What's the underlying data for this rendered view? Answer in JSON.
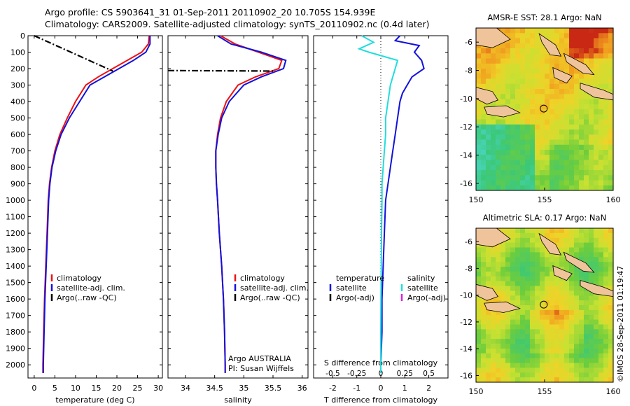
{
  "header": {
    "line1": "Argo profile: CS 5903641_31 01-Sep-2011 20110902_20 10.705S 154.939E",
    "line2": "Climatology: CARS2009. Satellite-adjusted climatology: synTS_20110902.nc (0.4d later)"
  },
  "credit": "©IMOS 28-Sep-2011 01:19:47",
  "colors": {
    "climatology": "#ee1111",
    "satellite_adj": "#1111dd",
    "argo": "#000000",
    "salinity_satellite": "#22dddd",
    "salinity_argo": "#dd22dd"
  },
  "chart_data": [
    {
      "type": "line",
      "id": "temperature",
      "xlabel": "temperature (deg C)",
      "ylabel": "",
      "xlim": [
        -1.5,
        31
      ],
      "ylim": [
        2080,
        0
      ],
      "xticks": [
        0,
        5,
        10,
        15,
        20,
        25,
        30
      ],
      "yticks": [
        0,
        100,
        200,
        300,
        400,
        500,
        600,
        700,
        800,
        900,
        1000,
        1100,
        1200,
        1300,
        1400,
        1500,
        1600,
        1700,
        1800,
        1900,
        2000
      ],
      "series": [
        {
          "name": "climatology",
          "color": "#ee1111",
          "points": [
            [
              27.8,
              0
            ],
            [
              27.6,
              50
            ],
            [
              26,
              100
            ],
            [
              22.5,
              150
            ],
            [
              19,
              200
            ],
            [
              15.5,
              250
            ],
            [
              12.5,
              300
            ],
            [
              10,
              400
            ],
            [
              8,
              500
            ],
            [
              6.2,
              600
            ],
            [
              5,
              700
            ],
            [
              4.2,
              800
            ],
            [
              3.7,
              900
            ],
            [
              3.4,
              1000
            ],
            [
              3.1,
              1200
            ],
            [
              2.8,
              1400
            ],
            [
              2.5,
              1600
            ],
            [
              2.3,
              1800
            ],
            [
              2.1,
              2000
            ],
            [
              2.1,
              2050
            ]
          ]
        },
        {
          "name": "satellite-adj. clim.",
          "color": "#1111dd",
          "points": [
            [
              28,
              0
            ],
            [
              28,
              50
            ],
            [
              27,
              100
            ],
            [
              24,
              150
            ],
            [
              20.5,
              200
            ],
            [
              17,
              250
            ],
            [
              13.5,
              300
            ],
            [
              11,
              400
            ],
            [
              8.5,
              500
            ],
            [
              6.5,
              600
            ],
            [
              5.2,
              700
            ],
            [
              4.3,
              800
            ],
            [
              3.8,
              900
            ],
            [
              3.5,
              1000
            ],
            [
              3.2,
              1200
            ],
            [
              2.9,
              1400
            ],
            [
              2.6,
              1600
            ],
            [
              2.4,
              1800
            ],
            [
              2.2,
              2000
            ],
            [
              2.2,
              2050
            ]
          ]
        },
        {
          "name": "Argo(..raw -QC)",
          "color": "#000000",
          "dash": true,
          "points": [
            [
              0,
              0
            ],
            [
              19,
              215
            ]
          ]
        }
      ],
      "legend": [
        "climatology",
        "satellite-adj. clim.",
        "Argo(..raw -QC)"
      ]
    },
    {
      "type": "line",
      "id": "salinity",
      "xlabel": "salinity",
      "xlim": [
        33.7,
        36.1
      ],
      "ylim": [
        2080,
        0
      ],
      "xticks": [
        34,
        34.5,
        35,
        35.5,
        36
      ],
      "series": [
        {
          "name": "climatology",
          "color": "#ee1111",
          "points": [
            [
              34.6,
              0
            ],
            [
              34.85,
              50
            ],
            [
              35.25,
              100
            ],
            [
              35.65,
              150
            ],
            [
              35.6,
              200
            ],
            [
              35.2,
              250
            ],
            [
              34.9,
              300
            ],
            [
              34.7,
              400
            ],
            [
              34.6,
              500
            ],
            [
              34.55,
              600
            ],
            [
              34.52,
              700
            ],
            [
              34.52,
              800
            ],
            [
              34.53,
              900
            ],
            [
              34.55,
              1000
            ],
            [
              34.58,
              1200
            ],
            [
              34.62,
              1400
            ],
            [
              34.65,
              1600
            ],
            [
              34.67,
              1800
            ],
            [
              34.68,
              2000
            ],
            [
              34.68,
              2050
            ]
          ]
        },
        {
          "name": "satellite-adj. clim.",
          "color": "#1111dd",
          "points": [
            [
              34.55,
              0
            ],
            [
              34.78,
              50
            ],
            [
              35.3,
              100
            ],
            [
              35.72,
              150
            ],
            [
              35.68,
              200
            ],
            [
              35.3,
              250
            ],
            [
              35,
              300
            ],
            [
              34.75,
              400
            ],
            [
              34.62,
              500
            ],
            [
              34.56,
              600
            ],
            [
              34.52,
              700
            ],
            [
              34.52,
              800
            ],
            [
              34.53,
              900
            ],
            [
              34.55,
              1000
            ],
            [
              34.58,
              1200
            ],
            [
              34.62,
              1400
            ],
            [
              34.65,
              1600
            ],
            [
              34.67,
              1800
            ],
            [
              34.68,
              2000
            ],
            [
              34.68,
              2050
            ]
          ]
        },
        {
          "name": "Argo(..raw -QC)",
          "color": "#000000",
          "dash": true,
          "points": [
            [
              33.7,
              212
            ],
            [
              35.5,
              215
            ]
          ]
        }
      ],
      "legend": [
        "climatology",
        "satellite-adj. clim.",
        "Argo(..raw -QC)"
      ],
      "annotation": [
        "Argo AUSTRALIA",
        "PI: Susan Wijffels"
      ]
    },
    {
      "type": "line",
      "id": "difference",
      "xlabel": "T difference from climatology",
      "xlabel_top": "S difference from climatology",
      "xlim": [
        -2.8,
        2.8
      ],
      "ylim": [
        2080,
        0
      ],
      "xticks": [
        -2,
        -1,
        0,
        1,
        2
      ],
      "xticks_s": [
        "-0.5",
        "-0.25",
        "0",
        "0.25",
        "0.5"
      ],
      "series": [
        {
          "name": "temperature satellite",
          "color": "#1111dd",
          "points": [
            [
              0.8,
              0
            ],
            [
              0.6,
              30
            ],
            [
              1.6,
              60
            ],
            [
              1.4,
              100
            ],
            [
              1.7,
              150
            ],
            [
              1.8,
              200
            ],
            [
              1.3,
              250
            ],
            [
              1.1,
              300
            ],
            [
              0.9,
              350
            ],
            [
              0.8,
              400
            ],
            [
              0.7,
              500
            ],
            [
              0.6,
              600
            ],
            [
              0.5,
              700
            ],
            [
              0.4,
              800
            ],
            [
              0.3,
              900
            ],
            [
              0.2,
              1000
            ],
            [
              0.15,
              1200
            ],
            [
              0.1,
              1400
            ],
            [
              0.05,
              1600
            ],
            [
              0.05,
              1800
            ],
            [
              0.0,
              2000
            ],
            [
              0.0,
              2050
            ]
          ]
        },
        {
          "name": "salinity satellite",
          "color": "#22dddd",
          "points": [
            [
              -0.8,
              0
            ],
            [
              -0.3,
              40
            ],
            [
              -0.9,
              80
            ],
            [
              -0.5,
              100
            ],
            [
              0.7,
              150
            ],
            [
              0.6,
              200
            ],
            [
              0.5,
              250
            ],
            [
              0.4,
              300
            ],
            [
              0.3,
              400
            ],
            [
              0.2,
              500
            ],
            [
              0.2,
              600
            ],
            [
              0.15,
              700
            ],
            [
              0.1,
              800
            ],
            [
              0.05,
              900
            ],
            [
              0.05,
              1000
            ],
            [
              0.03,
              1200
            ],
            [
              0.02,
              1400
            ],
            [
              0.01,
              1600
            ],
            [
              0.0,
              1800
            ],
            [
              0.0,
              2000
            ],
            [
              0.0,
              2050
            ]
          ]
        }
      ],
      "legend_left": [
        "temperature",
        "satellite",
        "Argo(-adj)"
      ],
      "legend_right": [
        "salinity",
        "satellite",
        "Argo(-adj)"
      ]
    },
    {
      "type": "heatmap",
      "id": "sst_map",
      "title": "AMSR-E SST: 28.1 Argo: NaN",
      "xlim": [
        150,
        160
      ],
      "ylim": [
        -16.5,
        -5
      ],
      "xticks": [
        150,
        155,
        160
      ],
      "yticks": [
        -6,
        -8,
        -10,
        -12,
        -14,
        -16
      ],
      "marker": [
        154.939,
        -10.705
      ]
    },
    {
      "type": "heatmap",
      "id": "sla_map",
      "title": "Altimetric SLA: 0.17 Argo: NaN",
      "xlim": [
        150,
        160
      ],
      "ylim": [
        -16.5,
        -5
      ],
      "xticks": [
        150,
        155,
        160
      ],
      "yticks": [
        -6,
        -8,
        -10,
        -12,
        -14,
        -16
      ],
      "marker": [
        154.939,
        -10.705
      ]
    }
  ]
}
